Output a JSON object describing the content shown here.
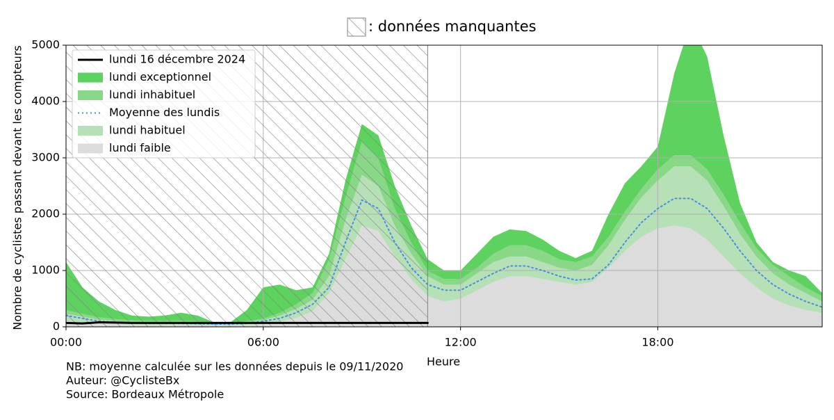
{
  "chart_data": {
    "type": "area",
    "missing_label": ": données manquantes",
    "missing_xlim": [
      0,
      11
    ],
    "xlabel": "Heure",
    "ylabel": "Nombre de cyclistes passant devant les compteurs",
    "notes": [
      "NB: moyenne calculée sur les données depuis le 09/11/2020",
      "Auteur: @CyclisteBx",
      "Source: Bordeaux Métropole"
    ],
    "xlim": [
      0,
      23
    ],
    "ylim": [
      0,
      5000
    ],
    "xticks": [
      {
        "value": 0,
        "label": "00:00"
      },
      {
        "value": 6,
        "label": "06:00"
      },
      {
        "value": 12,
        "label": "12:00"
      },
      {
        "value": 18,
        "label": "18:00"
      }
    ],
    "yticks": [
      0,
      1000,
      2000,
      3000,
      4000,
      5000
    ],
    "grid": true,
    "legend": "upper left",
    "x": [
      0,
      0.5,
      1,
      1.5,
      2,
      2.5,
      3,
      3.5,
      4,
      4.5,
      5,
      5.5,
      6,
      6.5,
      7,
      7.5,
      8,
      8.5,
      9,
      9.5,
      10,
      10.5,
      11,
      11.5,
      12,
      12.5,
      13,
      13.5,
      14,
      14.5,
      15,
      15.5,
      16,
      16.5,
      17,
      17.5,
      18,
      18.5,
      19,
      19.5,
      20,
      20.5,
      21,
      21.5,
      22,
      22.5,
      23
    ],
    "series": [
      {
        "name": "lundi 16 décembre 2024",
        "style": "line",
        "color": "#000000",
        "linestyle": "solid",
        "values": [
          70,
          60,
          80,
          75,
          70,
          70,
          70,
          70,
          70,
          70,
          70,
          70,
          70,
          70,
          70,
          70,
          70,
          70,
          70,
          70,
          70,
          70,
          70,
          null,
          null,
          null,
          null,
          null,
          null,
          null,
          null,
          null,
          null,
          null,
          null,
          null,
          null,
          null,
          null,
          null,
          null,
          null,
          null,
          null,
          null,
          null,
          null
        ]
      },
      {
        "name": "lundi exceptionnel",
        "style": "area",
        "color": "#5ed25e",
        "values": [
          1150,
          700,
          450,
          300,
          200,
          180,
          200,
          250,
          200,
          80,
          80,
          300,
          700,
          750,
          650,
          700,
          1300,
          2600,
          3600,
          3400,
          2500,
          1800,
          1200,
          1000,
          1000,
          1300,
          1600,
          1730,
          1700,
          1550,
          1350,
          1220,
          1350,
          2000,
          2550,
          2850,
          3200,
          4500,
          5400,
          4800,
          3400,
          2200,
          1500,
          1150,
          1000,
          900,
          600
        ]
      },
      {
        "name": "lundi inhabituel",
        "style": "area",
        "color": "#88d888",
        "values": [
          300,
          230,
          170,
          140,
          120,
          110,
          110,
          110,
          100,
          70,
          70,
          100,
          150,
          250,
          400,
          600,
          1200,
          2300,
          3300,
          3000,
          2100,
          1500,
          1000,
          850,
          850,
          1050,
          1300,
          1450,
          1450,
          1350,
          1200,
          1150,
          1250,
          1600,
          2050,
          2450,
          2800,
          3050,
          3050,
          2800,
          2350,
          1850,
          1400,
          1100,
          900,
          700,
          550
        ]
      },
      {
        "name": "Moyenne des lundis",
        "style": "line",
        "color": "#4b8be8",
        "linestyle": "dotted",
        "values": [
          200,
          150,
          100,
          80,
          70,
          60,
          60,
          60,
          55,
          50,
          50,
          60,
          100,
          150,
          250,
          400,
          700,
          1500,
          2250,
          2100,
          1500,
          1050,
          750,
          650,
          650,
          800,
          950,
          1080,
          1080,
          1000,
          900,
          830,
          850,
          1100,
          1500,
          1850,
          2100,
          2280,
          2280,
          2100,
          1750,
          1350,
          1000,
          750,
          580,
          450,
          350
        ]
      },
      {
        "name": "lundi habituel",
        "style": "area",
        "color": "#b6e0b6",
        "values": [
          230,
          180,
          130,
          100,
          90,
          80,
          80,
          80,
          75,
          60,
          60,
          80,
          120,
          200,
          320,
          480,
          900,
          1900,
          2700,
          2500,
          1800,
          1300,
          900,
          750,
          750,
          950,
          1150,
          1250,
          1250,
          1150,
          1050,
          1000,
          1100,
          1450,
          1900,
          2300,
          2600,
          2850,
          2850,
          2600,
          2150,
          1650,
          1250,
          950,
          750,
          600,
          450
        ]
      },
      {
        "name": "lundi faible",
        "style": "area",
        "color": "#dcdcdc",
        "values": [
          100,
          80,
          60,
          50,
          40,
          35,
          35,
          35,
          30,
          25,
          25,
          30,
          50,
          90,
          160,
          280,
          600,
          1200,
          1800,
          1700,
          1250,
          850,
          550,
          450,
          500,
          650,
          800,
          900,
          900,
          850,
          800,
          750,
          800,
          1050,
          1350,
          1600,
          1750,
          1800,
          1750,
          1550,
          1250,
          950,
          700,
          500,
          380,
          300,
          250
        ]
      }
    ]
  }
}
